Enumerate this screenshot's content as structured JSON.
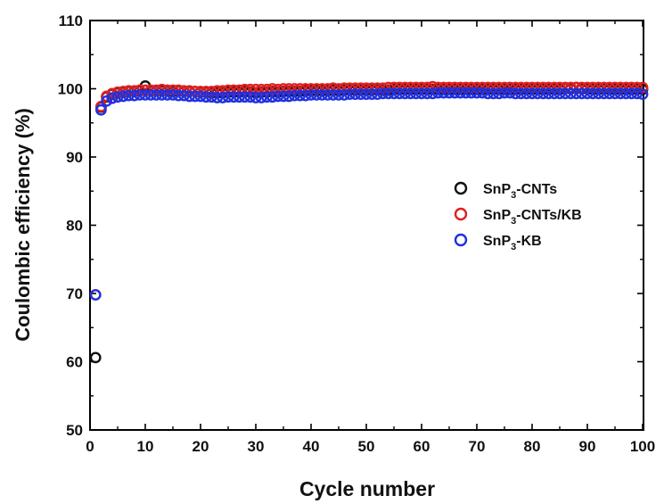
{
  "chart_data": {
    "type": "scatter",
    "title": "",
    "xlabel": "Cycle number",
    "ylabel": "Coulombic efficiency (%)",
    "xlim": [
      0,
      100
    ],
    "ylim": [
      50,
      110
    ],
    "xticks": [
      0,
      10,
      20,
      30,
      40,
      50,
      60,
      70,
      80,
      90,
      100
    ],
    "yticks": [
      50,
      60,
      70,
      80,
      90,
      100,
      110
    ],
    "grid": false,
    "legend_position": "right-middle",
    "marker": "open-circle",
    "series": [
      {
        "name": "SnP3-CNTs",
        "legend_parts": {
          "base": "SnP",
          "sub": "3",
          "rest": "-CNTs"
        },
        "color": "#111111",
        "x": [
          1,
          2,
          3,
          4,
          5,
          6,
          7,
          8,
          9,
          10,
          11,
          12,
          13,
          14,
          15,
          16,
          17,
          18,
          19,
          20,
          21,
          22,
          23,
          24,
          25,
          26,
          27,
          28,
          29,
          30,
          31,
          32,
          33,
          34,
          35,
          36,
          37,
          38,
          39,
          40,
          41,
          42,
          43,
          44,
          45,
          46,
          47,
          48,
          49,
          50,
          51,
          52,
          53,
          54,
          55,
          56,
          57,
          58,
          59,
          60,
          61,
          62,
          63,
          64,
          65,
          66,
          67,
          68,
          69,
          70,
          71,
          72,
          73,
          74,
          75,
          76,
          77,
          78,
          79,
          80,
          81,
          82,
          83,
          84,
          85,
          86,
          87,
          88,
          89,
          90,
          91,
          92,
          93,
          94,
          95,
          96,
          97,
          98,
          99,
          100
        ],
        "values": [
          60.6,
          97.3,
          98.8,
          99.2,
          99.4,
          99.5,
          99.6,
          99.6,
          99.7,
          100.4,
          99.7,
          99.7,
          99.7,
          99.7,
          99.6,
          99.7,
          99.6,
          99.6,
          99.6,
          99.5,
          99.5,
          99.4,
          99.4,
          99.4,
          99.5,
          99.5,
          99.5,
          99.6,
          99.5,
          99.4,
          99.5,
          99.5,
          99.6,
          99.5,
          99.6,
          99.6,
          99.6,
          99.6,
          99.7,
          99.7,
          99.7,
          99.7,
          99.7,
          99.8,
          99.7,
          99.8,
          99.8,
          99.8,
          99.8,
          99.8,
          99.8,
          99.9,
          99.8,
          99.8,
          99.9,
          99.9,
          99.9,
          99.9,
          99.9,
          99.9,
          99.9,
          99.9,
          99.9,
          99.9,
          99.9,
          99.9,
          99.9,
          99.9,
          99.9,
          99.9,
          99.9,
          99.9,
          99.9,
          99.9,
          99.9,
          99.9,
          99.9,
          99.9,
          99.9,
          99.9,
          99.9,
          99.9,
          99.9,
          99.9,
          99.9,
          100.1,
          100.0,
          100.2,
          100.0,
          100.0,
          99.9,
          99.9,
          100.0,
          99.9,
          99.9,
          99.9,
          99.9,
          99.9,
          99.9,
          99.9
        ]
      },
      {
        "name": "SnP3-CNTs/KB",
        "legend_parts": {
          "base": "SnP",
          "sub": "3",
          "rest": "-CNTs/KB"
        },
        "color": "#e02020",
        "x": [
          1,
          2,
          3,
          4,
          5,
          6,
          7,
          8,
          9,
          10,
          11,
          12,
          13,
          14,
          15,
          16,
          17,
          18,
          19,
          20,
          21,
          22,
          23,
          24,
          25,
          26,
          27,
          28,
          29,
          30,
          31,
          32,
          33,
          34,
          35,
          36,
          37,
          38,
          39,
          40,
          41,
          42,
          43,
          44,
          45,
          46,
          47,
          48,
          49,
          50,
          51,
          52,
          53,
          54,
          55,
          56,
          57,
          58,
          59,
          60,
          61,
          62,
          63,
          64,
          65,
          66,
          67,
          68,
          69,
          70,
          71,
          72,
          73,
          74,
          75,
          76,
          77,
          78,
          79,
          80,
          81,
          82,
          83,
          84,
          85,
          86,
          87,
          88,
          89,
          90,
          91,
          92,
          93,
          94,
          95,
          96,
          97,
          98,
          99,
          100
        ],
        "values": [
          69.8,
          97.4,
          98.9,
          99.3,
          99.5,
          99.6,
          99.7,
          99.7,
          99.8,
          99.8,
          99.8,
          99.8,
          99.9,
          99.8,
          99.8,
          99.8,
          99.7,
          99.7,
          99.6,
          99.6,
          99.6,
          99.6,
          99.7,
          99.7,
          99.8,
          99.8,
          99.8,
          99.9,
          99.9,
          99.9,
          99.9,
          99.9,
          100.0,
          99.9,
          100.0,
          100.0,
          100.0,
          100.0,
          100.0,
          100.0,
          100.0,
          100.0,
          100.0,
          100.1,
          100.0,
          100.1,
          100.1,
          100.1,
          100.1,
          100.1,
          100.1,
          100.1,
          100.1,
          100.2,
          100.2,
          100.2,
          100.2,
          100.2,
          100.2,
          100.2,
          100.2,
          100.3,
          100.2,
          100.2,
          100.2,
          100.2,
          100.2,
          100.2,
          100.2,
          100.2,
          100.2,
          100.2,
          100.2,
          100.2,
          100.2,
          100.2,
          100.2,
          100.2,
          100.2,
          100.2,
          100.2,
          100.2,
          100.2,
          100.2,
          100.2,
          100.2,
          100.2,
          100.2,
          100.2,
          100.2,
          100.2,
          100.2,
          100.2,
          100.2,
          100.2,
          100.2,
          100.2,
          100.2,
          100.2,
          100.2
        ]
      },
      {
        "name": "SnP3-KB",
        "legend_parts": {
          "base": "SnP",
          "sub": "3",
          "rest": "-KB"
        },
        "color": "#2030e0",
        "x": [
          1,
          2,
          3,
          4,
          5,
          6,
          7,
          8,
          9,
          10,
          11,
          12,
          13,
          14,
          15,
          16,
          17,
          18,
          19,
          20,
          21,
          22,
          23,
          24,
          25,
          26,
          27,
          28,
          29,
          30,
          31,
          32,
          33,
          34,
          35,
          36,
          37,
          38,
          39,
          40,
          41,
          42,
          43,
          44,
          45,
          46,
          47,
          48,
          49,
          50,
          51,
          52,
          53,
          54,
          55,
          56,
          57,
          58,
          59,
          60,
          61,
          62,
          63,
          64,
          65,
          66,
          67,
          68,
          69,
          70,
          71,
          72,
          73,
          74,
          75,
          76,
          77,
          78,
          79,
          80,
          81,
          82,
          83,
          84,
          85,
          86,
          87,
          88,
          89,
          90,
          91,
          92,
          93,
          94,
          95,
          96,
          97,
          98,
          99,
          100
        ],
        "values": [
          69.8,
          96.9,
          98.2,
          98.6,
          98.8,
          98.9,
          99.0,
          99.0,
          99.1,
          99.1,
          99.1,
          99.1,
          99.1,
          99.1,
          99.1,
          99.0,
          99.0,
          98.9,
          98.9,
          98.9,
          98.8,
          98.8,
          98.7,
          98.7,
          98.8,
          98.8,
          98.8,
          98.8,
          98.8,
          98.7,
          98.7,
          98.8,
          98.8,
          98.9,
          98.9,
          98.9,
          99.0,
          99.0,
          99.0,
          99.1,
          99.1,
          99.1,
          99.1,
          99.1,
          99.1,
          99.1,
          99.2,
          99.2,
          99.2,
          99.2,
          99.2,
          99.2,
          99.3,
          99.3,
          99.3,
          99.3,
          99.3,
          99.3,
          99.3,
          99.3,
          99.3,
          99.3,
          99.4,
          99.4,
          99.4,
          99.4,
          99.4,
          99.4,
          99.4,
          99.4,
          99.4,
          99.3,
          99.3,
          99.3,
          99.4,
          99.4,
          99.3,
          99.3,
          99.3,
          99.3,
          99.3,
          99.3,
          99.3,
          99.3,
          99.3,
          99.3,
          99.3,
          99.3,
          99.3,
          99.3,
          99.3,
          99.3,
          99.3,
          99.3,
          99.3,
          99.3,
          99.3,
          99.3,
          99.3,
          99.2
        ]
      }
    ]
  }
}
